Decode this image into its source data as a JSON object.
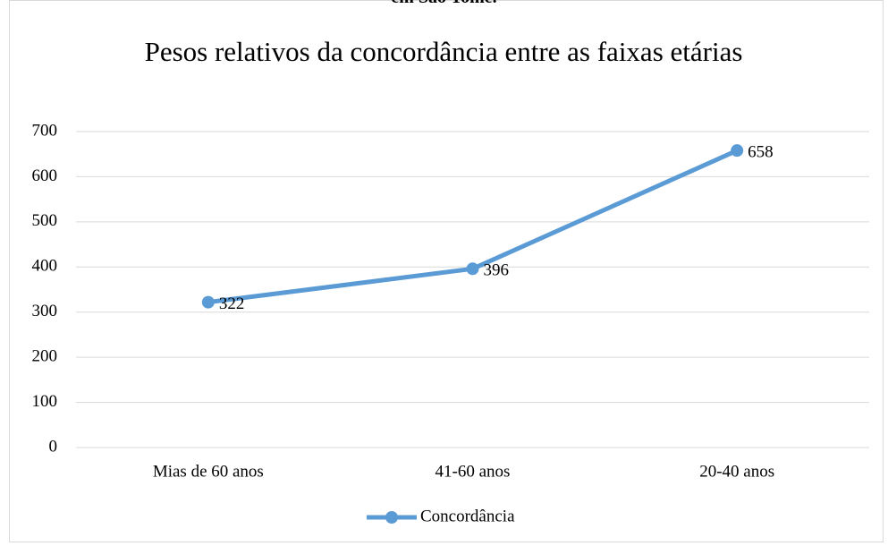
{
  "chart_data": {
    "type": "line",
    "caption": "em São Tomé.",
    "title": "Pesos relativos da concordância entre as faixas etárias",
    "categories": [
      "Mias de 60 anos",
      "41-60 anos",
      "20-40 anos"
    ],
    "series": [
      {
        "name": "Concordância",
        "color": "#5b9bd5",
        "values": [
          322,
          396,
          658
        ]
      }
    ],
    "ylim": [
      0,
      700
    ],
    "yticks": [
      0,
      100,
      200,
      300,
      400,
      500,
      600,
      700
    ],
    "grid": true,
    "data_labels": true,
    "legend": "bottom"
  }
}
